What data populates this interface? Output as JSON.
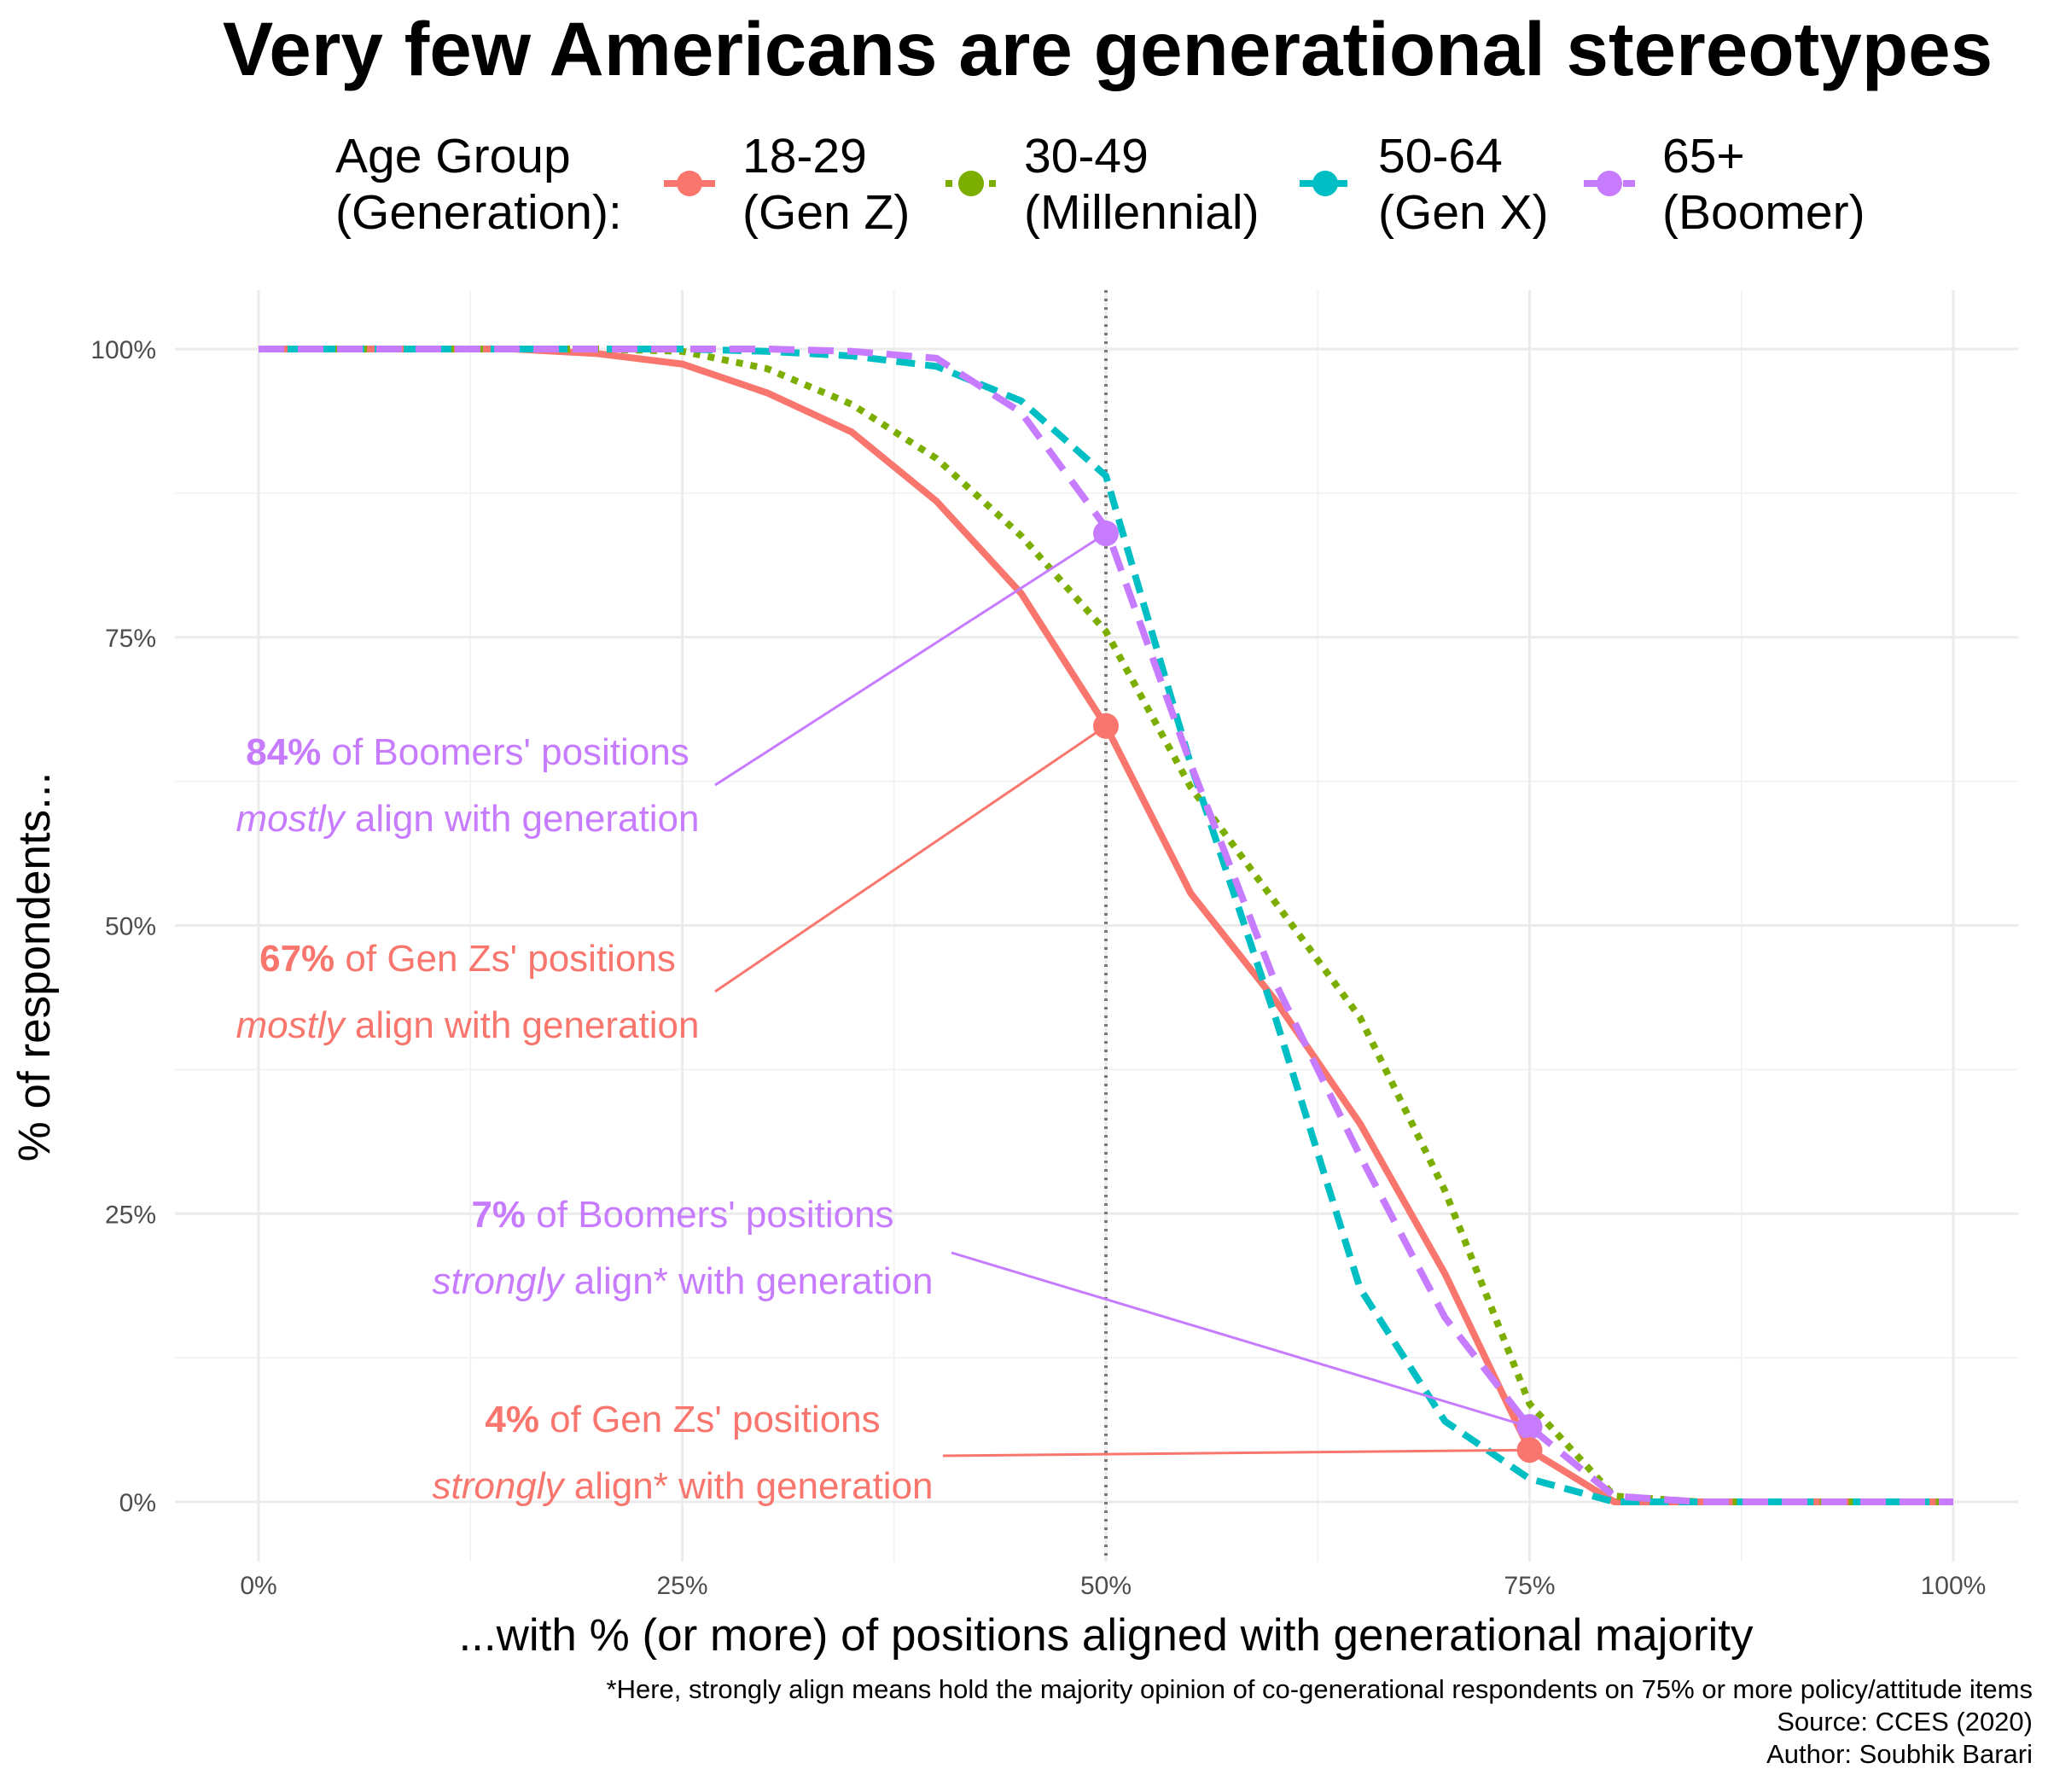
{
  "chart_data": {
    "type": "line",
    "title": "Very few Americans are generational stereotypes",
    "xlabel": "...with % (or more) of positions aligned with generational majority",
    "ylabel": "% of respondents...",
    "xlim": [
      0,
      1
    ],
    "ylim": [
      0,
      1
    ],
    "x_ticks": [
      0,
      0.25,
      0.5,
      0.75,
      1
    ],
    "x_tick_labels": [
      "0%",
      "25%",
      "50%",
      "75%",
      "100%"
    ],
    "y_ticks": [
      0,
      0.25,
      0.5,
      0.75,
      1
    ],
    "y_tick_labels": [
      "0%",
      "25%",
      "50%",
      "75%",
      "100%"
    ],
    "grid": true,
    "legend_position": "top",
    "legend_title": [
      "Age Group",
      "(Generation):"
    ],
    "reference_line_x": 0.5,
    "x": [
      0,
      0.05,
      0.1,
      0.15,
      0.2,
      0.25,
      0.3,
      0.35,
      0.4,
      0.45,
      0.5,
      0.55,
      0.6,
      0.65,
      0.7,
      0.75,
      0.8,
      0.85,
      0.9,
      0.95,
      1.0
    ],
    "series": [
      {
        "name": "18-29",
        "label_lines": [
          "18-29",
          "(Gen Z)"
        ],
        "color": "#F8766D",
        "dash": "solid",
        "values": [
          1.0,
          1.0,
          1.0,
          1.0,
          0.996,
          0.987,
          0.962,
          0.928,
          0.868,
          0.788,
          0.673,
          0.528,
          0.435,
          0.328,
          0.198,
          0.045,
          0.0,
          0.0,
          0.0,
          0.0,
          0.0
        ]
      },
      {
        "name": "30-49",
        "label_lines": [
          "30-49",
          "(Millennial)"
        ],
        "color": "#7CAE00",
        "dash": "dotted",
        "values": [
          1.0,
          1.0,
          1.0,
          1.0,
          1.0,
          0.998,
          0.983,
          0.952,
          0.905,
          0.838,
          0.755,
          0.62,
          0.52,
          0.42,
          0.27,
          0.085,
          0.005,
          0.0,
          0.0,
          0.0,
          0.0
        ]
      },
      {
        "name": "50-64",
        "label_lines": [
          "50-64",
          "(Gen X)"
        ],
        "color": "#00BFC4",
        "dash": "dashed",
        "values": [
          1.0,
          1.0,
          1.0,
          1.0,
          1.0,
          1.0,
          0.998,
          0.994,
          0.985,
          0.955,
          0.89,
          0.64,
          0.42,
          0.185,
          0.07,
          0.02,
          0.0,
          0.0,
          0.0,
          0.0,
          0.0
        ]
      },
      {
        "name": "65+",
        "label_lines": [
          "65+",
          "(Boomer)"
        ],
        "color": "#C77CFF",
        "dash": "longdash",
        "values": [
          1.0,
          1.0,
          1.0,
          1.0,
          1.0,
          1.0,
          1.0,
          0.998,
          0.992,
          0.945,
          0.845,
          0.64,
          0.45,
          0.3,
          0.16,
          0.065,
          0.005,
          0.0,
          0.0,
          0.0,
          0.0
        ]
      }
    ],
    "highlight_points": [
      {
        "series": "65+",
        "x": 0.5,
        "y": 0.84,
        "color": "#C77CFF"
      },
      {
        "series": "18-29",
        "x": 0.5,
        "y": 0.673,
        "color": "#F8766D"
      },
      {
        "series": "65+",
        "x": 0.75,
        "y": 0.065,
        "color": "#C77CFF"
      },
      {
        "series": "18-29",
        "x": 0.75,
        "y": 0.045,
        "color": "#F8766D"
      }
    ],
    "annotations": [
      {
        "color": "#C77CFF",
        "bold": "84%",
        "line1_rest": " of Boomers' positions",
        "italic": "mostly",
        "line2_rest": " align with generation"
      },
      {
        "color": "#F8766D",
        "bold": "67%",
        "line1_rest": " of Gen Zs' positions",
        "italic": "mostly",
        "line2_rest": " align with generation"
      },
      {
        "color": "#C77CFF",
        "bold": "7%",
        "line1_rest": " of Boomers' positions",
        "italic": "strongly",
        "line2_rest": " align* with generation"
      },
      {
        "color": "#F8766D",
        "bold": "4%",
        "line1_rest": " of Gen Zs' positions",
        "italic": "strongly",
        "line2_rest": " align* with generation"
      }
    ],
    "caption": [
      "*Here, strongly align means hold the majority opinion of co-generational respondents on 75% or more policy/attitude items",
      "Source: CCES (2020)",
      "Author: Soubhik Barari"
    ]
  }
}
